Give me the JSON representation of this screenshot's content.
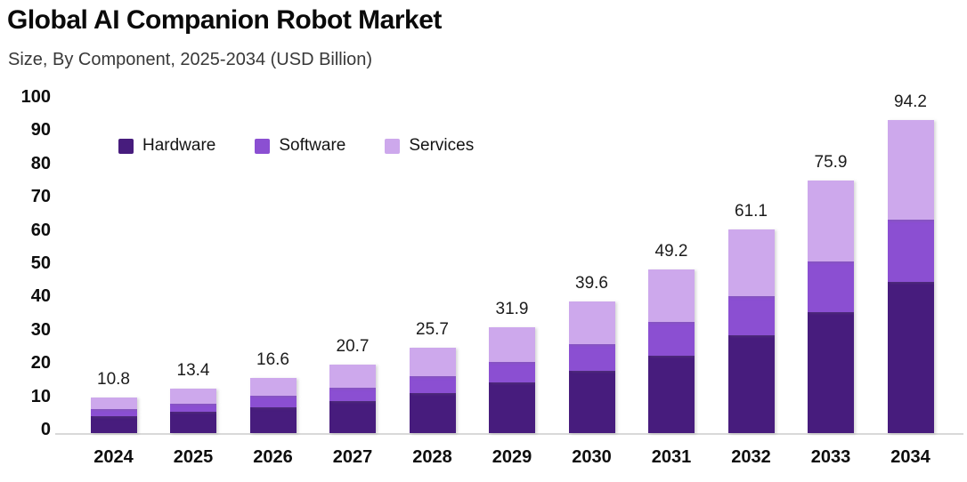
{
  "header": {
    "title": "Global AI Companion Robot Market",
    "subtitle": "Size, By Component, 2025-2034 (USD Billion)"
  },
  "colors": {
    "hardware": "#471c7d",
    "software": "#8b4fd2",
    "services": "#cda8ec",
    "axis_line": "#d9d9d9",
    "title_text": "#0a0a0a",
    "subtitle_text": "#383838",
    "label_text": "#1c1c1c"
  },
  "chart_data": {
    "type": "bar",
    "stacked": true,
    "title": "Global AI Companion Robot Market",
    "subtitle": "Size, By Component, 2025-2034 (USD Billion)",
    "categories": [
      "2024",
      "2025",
      "2026",
      "2027",
      "2028",
      "2029",
      "2030",
      "2031",
      "2032",
      "2033",
      "2034"
    ],
    "series": [
      {
        "name": "Hardware",
        "color": "#471c7d",
        "values": [
          5.2,
          6.4,
          7.7,
          9.7,
          12.1,
          15.3,
          18.8,
          23.3,
          29.3,
          36.4,
          45.4
        ]
      },
      {
        "name": "Software",
        "color": "#8b4fd2",
        "values": [
          2.1,
          2.5,
          3.5,
          4.0,
          5.1,
          6.0,
          7.9,
          10.0,
          12.0,
          15.2,
          18.8
        ]
      },
      {
        "name": "Services",
        "color": "#cda8ec",
        "values": [
          3.5,
          4.5,
          5.4,
          7.0,
          8.5,
          10.6,
          12.9,
          15.9,
          19.8,
          24.3,
          30.0
        ]
      }
    ],
    "totals": [
      10.8,
      13.4,
      16.6,
      20.7,
      25.7,
      31.9,
      39.6,
      49.2,
      61.1,
      75.9,
      94.2
    ],
    "total_labels": [
      "10.8",
      "13.4",
      "16.6",
      "20.7",
      "25.7",
      "31.9",
      "39.6",
      "49.2",
      "61.1",
      "75.9",
      "94.2"
    ],
    "y_ticks": [
      0,
      10,
      20,
      30,
      40,
      50,
      60,
      70,
      80,
      90,
      100
    ],
    "ylim": [
      0,
      100
    ],
    "xlabel": "",
    "ylabel": "",
    "grid": false,
    "legend_position": "top-left-inside",
    "unit": "USD Billion"
  }
}
